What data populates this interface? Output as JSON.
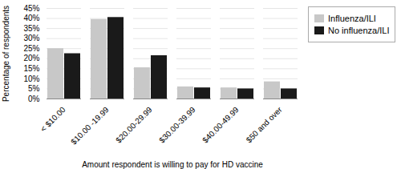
{
  "chart_data": {
    "type": "bar",
    "categories": [
      "< $10.00",
      "$10.00 -19.99",
      "$20.00-29.99",
      "$30.00-39.99",
      "$40.00-49.99",
      "$50 and over"
    ],
    "series": [
      {
        "name": "Influenza/ILI",
        "color": "#c8c8c8",
        "values": [
          25,
          39.5,
          15.5,
          6,
          5.5,
          8.5
        ]
      },
      {
        "name": "No influenza/ILI",
        "color": "#1a1a1a",
        "values": [
          22.5,
          40.5,
          21.5,
          5.5,
          5,
          5
        ]
      }
    ],
    "xlabel": "Amount respondent is willing to pay for HD vaccine",
    "ylabel": "Percentage of respondents",
    "ylim": [
      0,
      45
    ],
    "yticks": [
      {
        "value": 0,
        "label": "0%"
      },
      {
        "value": 5,
        "label": "5%"
      },
      {
        "value": 10,
        "label": "10%"
      },
      {
        "value": 15,
        "label": "15%"
      },
      {
        "value": 20,
        "label": "20%"
      },
      {
        "value": 25,
        "label": "25%"
      },
      {
        "value": 30,
        "label": "30%"
      },
      {
        "value": 35,
        "label": "35%"
      },
      {
        "value": 40,
        "label": "40%"
      },
      {
        "value": 45,
        "label": "45%"
      }
    ],
    "grid": true,
    "legend": "right"
  }
}
